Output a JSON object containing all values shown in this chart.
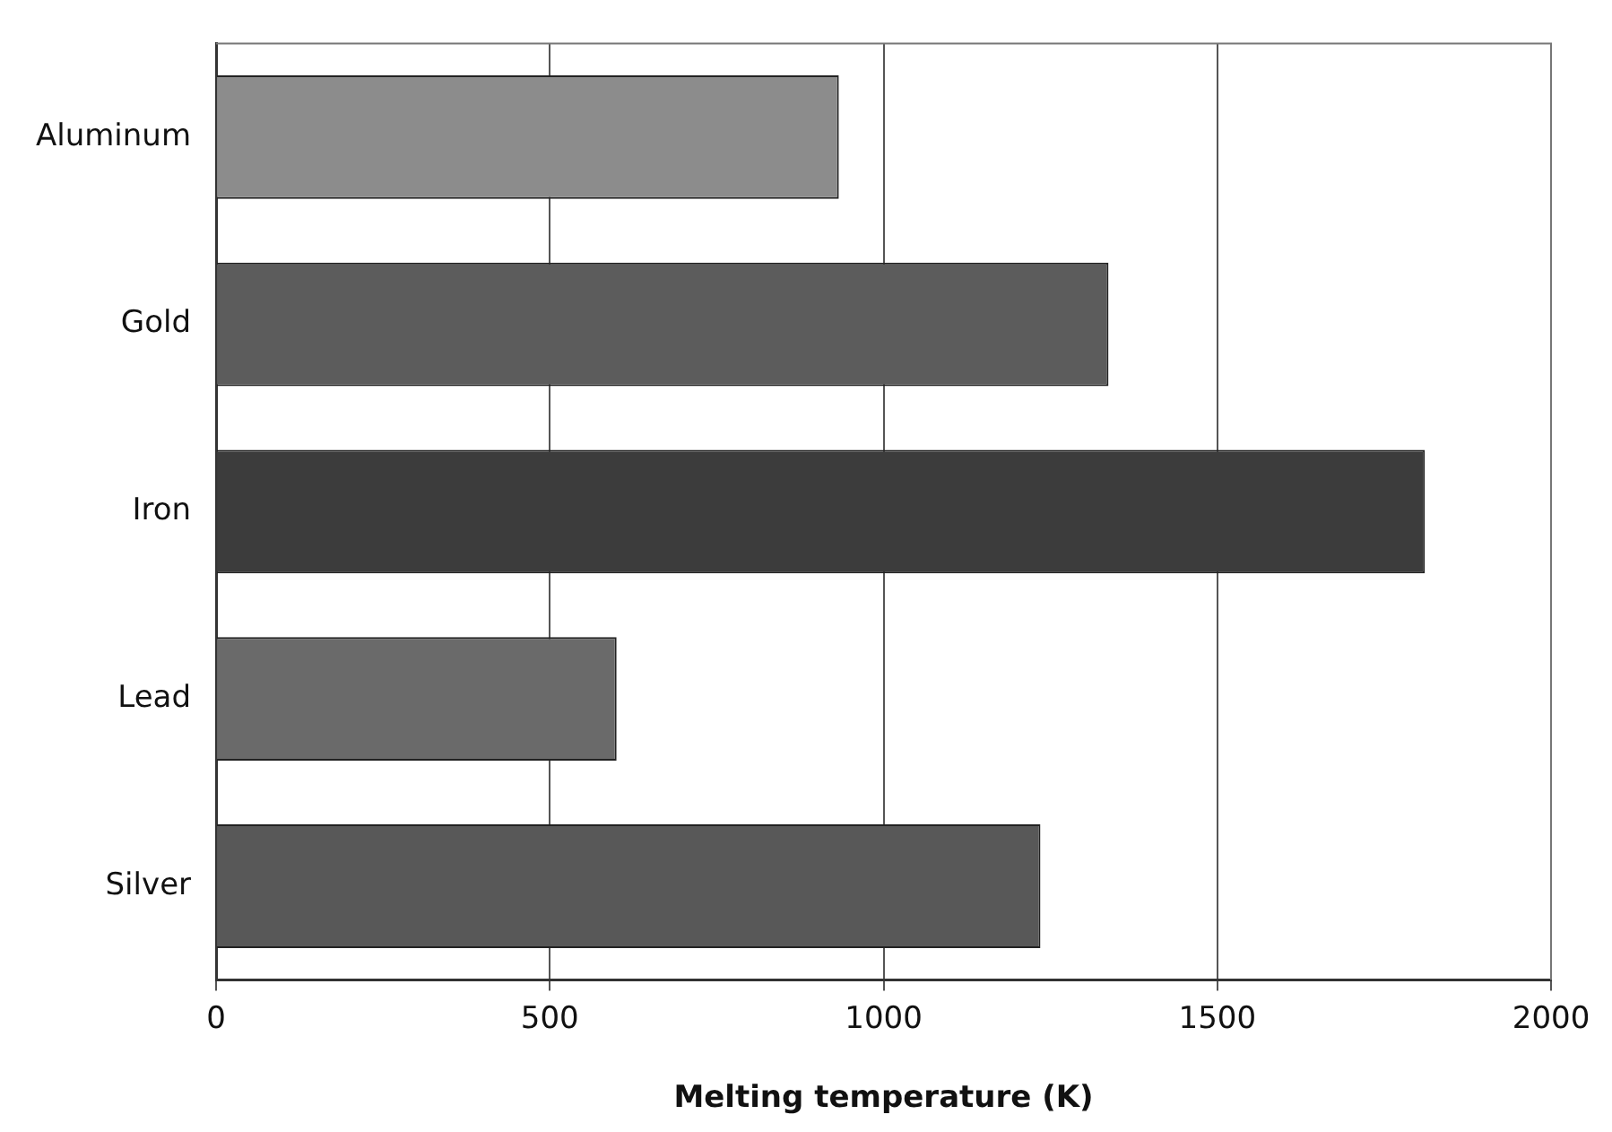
{
  "chart_data": {
    "type": "bar",
    "orientation": "horizontal",
    "xlabel": "Melting temperature (K)",
    "categories": [
      "Aluminum",
      "Gold",
      "Iron",
      "Lead",
      "Silver"
    ],
    "values": [
      933,
      1337,
      1811,
      600,
      1235
    ],
    "colors": [
      "#8c8c8c",
      "#5c5c5c",
      "#3c3c3c",
      "#6a6a6a",
      "#585858"
    ],
    "xlim": [
      0,
      2000
    ],
    "xticks": [
      0,
      500,
      1000,
      1500,
      2000
    ],
    "grid": "x"
  }
}
